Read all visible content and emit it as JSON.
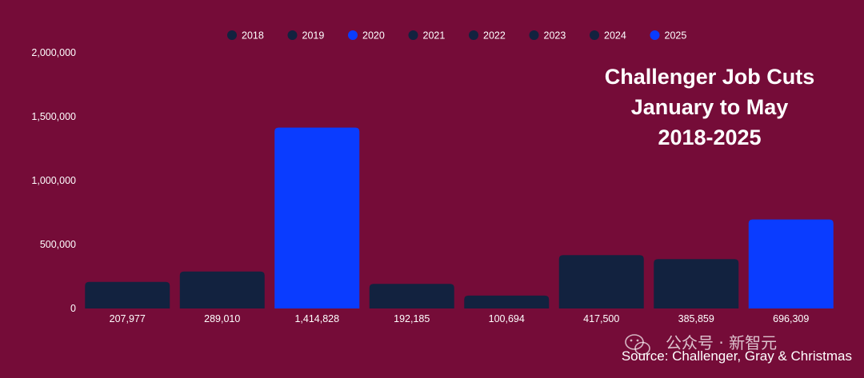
{
  "chart_data": {
    "type": "bar",
    "title_lines": [
      "Challenger Job Cuts",
      "January to May",
      "2018-2025"
    ],
    "categories": [
      "2018",
      "2019",
      "2020",
      "2021",
      "2022",
      "2023",
      "2024",
      "2025"
    ],
    "values": [
      207977,
      289010,
      1414828,
      192185,
      100694,
      417500,
      385859,
      696309
    ],
    "value_labels": [
      "207,977",
      "289,010",
      "1,414,828",
      "192,185",
      "100,694",
      "417,500",
      "385,859",
      "696,309"
    ],
    "colors": [
      "#12223f",
      "#12223f",
      "#0a3cff",
      "#12223f",
      "#12223f",
      "#12223f",
      "#12223f",
      "#0a3cff"
    ],
    "ylim": [
      0,
      2000000
    ],
    "yticks": [
      0,
      500000,
      1000000,
      1500000,
      2000000
    ],
    "ytick_labels": [
      "0",
      "500,000",
      "1,000,000",
      "1,500,000",
      "2,000,000"
    ],
    "grid": false,
    "legend_position": "top-center",
    "source": "Source: Challenger, Gray & Christmas",
    "watermark": "公众号 · 新智元"
  }
}
